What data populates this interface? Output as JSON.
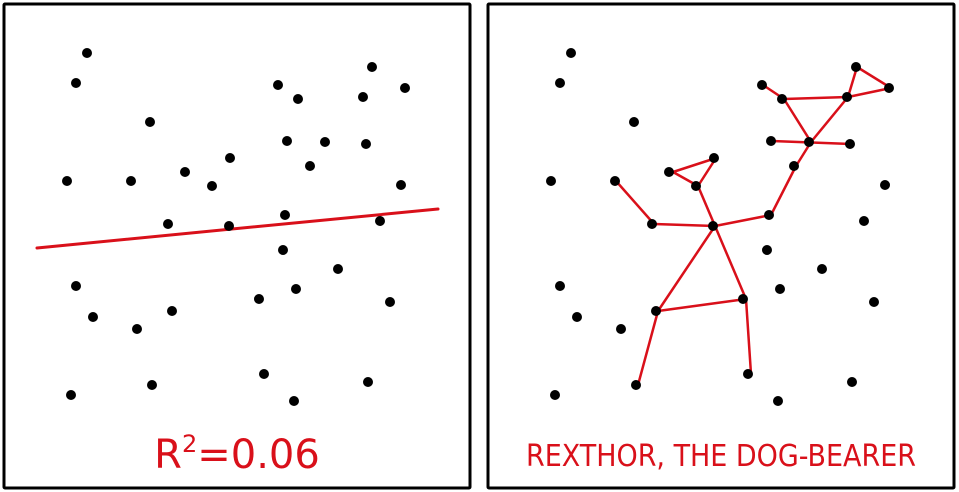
{
  "colors": {
    "ink": "#000000",
    "accent": "#d9101a",
    "background": "#ffffff"
  },
  "left_panel": {
    "caption_base": "R",
    "caption_sup": "2",
    "caption_rest": "=0.06",
    "chart_data": {
      "type": "scatter",
      "title": "",
      "xlabel": "",
      "ylabel": "",
      "grid": false,
      "points": [
        [
          87,
          53
        ],
        [
          76,
          83
        ],
        [
          150,
          122
        ],
        [
          67,
          181
        ],
        [
          131,
          181
        ],
        [
          185,
          172
        ],
        [
          212,
          186
        ],
        [
          230,
          158
        ],
        [
          168,
          224
        ],
        [
          229,
          226
        ],
        [
          278,
          85
        ],
        [
          298,
          99
        ],
        [
          287,
          141
        ],
        [
          325,
          142
        ],
        [
          310,
          166
        ],
        [
          363,
          97
        ],
        [
          372,
          67
        ],
        [
          405,
          88
        ],
        [
          366,
          144
        ],
        [
          401,
          185
        ],
        [
          285,
          215
        ],
        [
          380,
          221
        ],
        [
          283,
          250
        ],
        [
          338,
          269
        ],
        [
          76,
          286
        ],
        [
          93,
          317
        ],
        [
          137,
          329
        ],
        [
          172,
          311
        ],
        [
          259,
          299
        ],
        [
          296,
          289
        ],
        [
          390,
          302
        ],
        [
          71,
          395
        ],
        [
          152,
          385
        ],
        [
          264,
          374
        ],
        [
          294,
          401
        ],
        [
          368,
          382
        ]
      ],
      "trend_line": {
        "x": [
          37,
          438
        ],
        "y": [
          248,
          209
        ]
      }
    }
  },
  "right_panel": {
    "caption": "REXTHOR, THE DOG-BEARER"
  }
}
